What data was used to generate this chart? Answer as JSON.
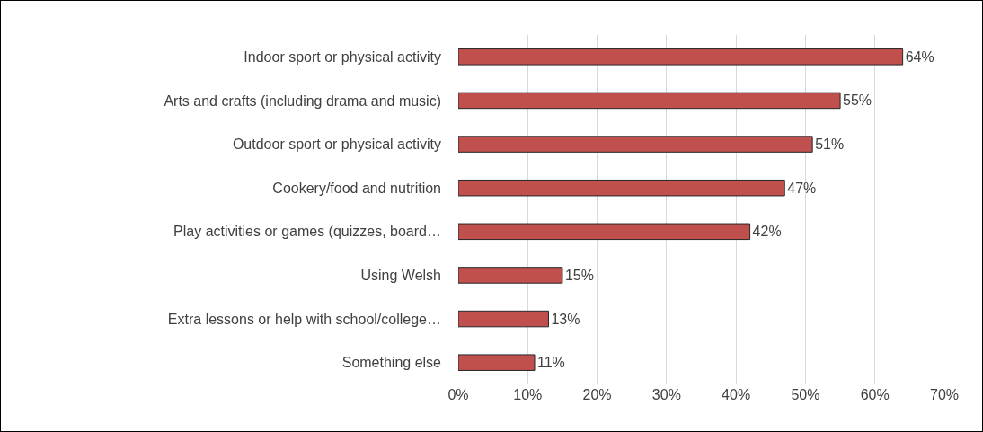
{
  "chart_data": {
    "type": "bar",
    "orientation": "horizontal",
    "categories": [
      "Indoor sport or physical activity",
      "Arts and crafts (including drama and music)",
      "Outdoor sport or physical activity",
      "Cookery/food and nutrition",
      "Play activities or games (quizzes, board…",
      "Using Welsh",
      "Extra lessons or help with school/college…",
      "Something else"
    ],
    "values": [
      64,
      55,
      51,
      47,
      42,
      15,
      13,
      11
    ],
    "value_labels": [
      "64%",
      "55%",
      "51%",
      "47%",
      "42%",
      "15%",
      "13%",
      "11%"
    ],
    "color": "#c0504d",
    "xlim": [
      0,
      70
    ],
    "xticks": [
      {
        "value": 0,
        "label": "0%"
      },
      {
        "value": 10,
        "label": "10%"
      },
      {
        "value": 20,
        "label": "20%"
      },
      {
        "value": 30,
        "label": "30%"
      },
      {
        "value": 40,
        "label": "40%"
      },
      {
        "value": 50,
        "label": "50%"
      },
      {
        "value": 60,
        "label": "60%"
      },
      {
        "value": 70,
        "label": "70%"
      }
    ],
    "grid": "x",
    "legend": false
  }
}
